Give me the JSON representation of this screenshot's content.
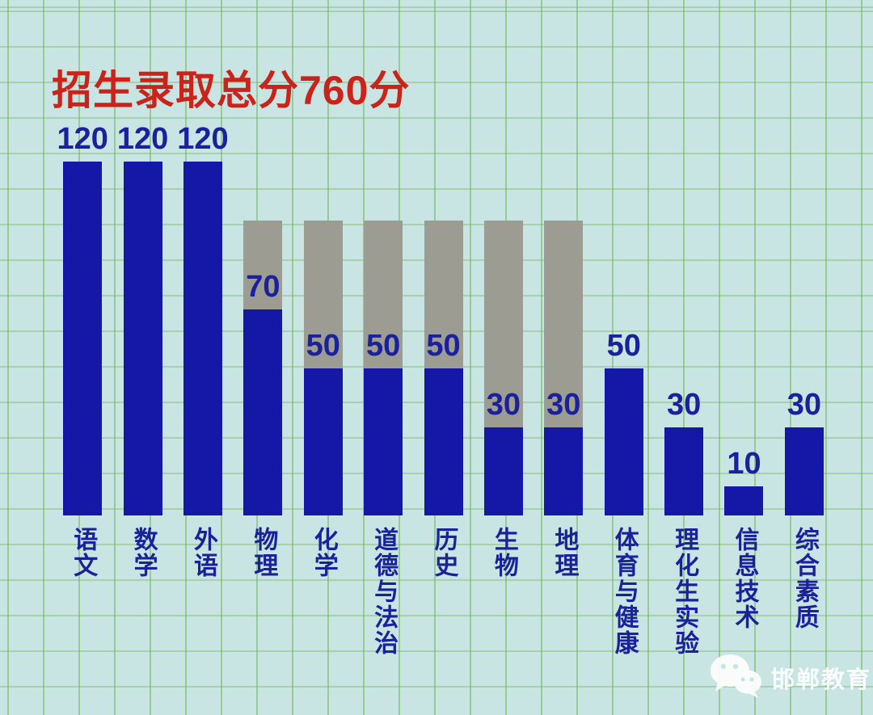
{
  "title": {
    "text": "招生录取总分760分"
  },
  "watermark": {
    "source_name": "邯郸教育",
    "icon": "wechat-icon"
  },
  "colors": {
    "background": "#c9e5e3",
    "grid_line": "#6eb458",
    "title_red": "#c9241b",
    "bar_blue": "#1517a6",
    "bar_gray_overlay": "#9c9c93",
    "text_navy": "#1b219a",
    "watermark_white": "#ffffff"
  },
  "chart_data": {
    "type": "bar",
    "title": "招生录取总分760分",
    "total_score": 760,
    "ylim": [
      0,
      120
    ],
    "grid": true,
    "legend": "none",
    "note": "gray overlay bars show the raw full score (100) of subjects whose counted score is weighted down",
    "overlay_full_score": 100,
    "categories": [
      "语文",
      "数学",
      "外语",
      "物理",
      "化学",
      "道德与法治",
      "历史",
      "生物",
      "地理",
      "体育与健康",
      "理化生实验",
      "信息技术",
      "综合素质"
    ],
    "values": [
      120,
      120,
      120,
      70,
      50,
      50,
      50,
      30,
      30,
      50,
      30,
      10,
      30
    ],
    "bars": [
      {
        "label": "语文",
        "value": 120
      },
      {
        "label": "数学",
        "value": 120
      },
      {
        "label": "外语",
        "value": 120
      },
      {
        "label": "物理",
        "value": 70,
        "overlay_value": 100
      },
      {
        "label": "化学",
        "value": 50,
        "overlay_value": 100
      },
      {
        "label": "道德与法治",
        "value": 50,
        "overlay_value": 100
      },
      {
        "label": "历史",
        "value": 50,
        "overlay_value": 100
      },
      {
        "label": "生物",
        "value": 30,
        "overlay_value": 100
      },
      {
        "label": "地理",
        "value": 30,
        "overlay_value": 100
      },
      {
        "label": "体育与健康",
        "value": 50
      },
      {
        "label": "理化生实验",
        "value": 30
      },
      {
        "label": "信息技术",
        "value": 10
      },
      {
        "label": "综合素质",
        "value": 30
      }
    ]
  }
}
